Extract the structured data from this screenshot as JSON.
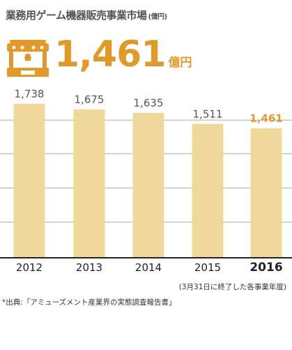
{
  "header": {
    "title": "業務用ゲーム機器販売事業市場",
    "title_unit": "(億円)",
    "headline_value": "1,461",
    "headline_unit": "億円",
    "icon": "kiosk-stall-icon"
  },
  "colors": {
    "bar": "#f0d89a",
    "accent": "#e09a2b",
    "grid": "#aaaaaa",
    "value_label": "#555555"
  },
  "chart_data": {
    "type": "bar",
    "categories": [
      "2012",
      "2013",
      "2014",
      "2015",
      "2016"
    ],
    "values": [
      1738,
      1675,
      1635,
      1511,
      1461
    ],
    "value_labels": [
      "1,738",
      "1,675",
      "1,635",
      "1,511",
      "1,461"
    ],
    "highlight_index": 4,
    "ylim": [
      0,
      1900
    ],
    "title": "業務用ゲーム機器販売事業市場",
    "xlabel": "",
    "ylabel": "",
    "grid": true
  },
  "footer": {
    "note": "(3月31日に終了した各事業年度)",
    "source": "*出典:「アミューズメント産業界の実態調査報告書」"
  }
}
